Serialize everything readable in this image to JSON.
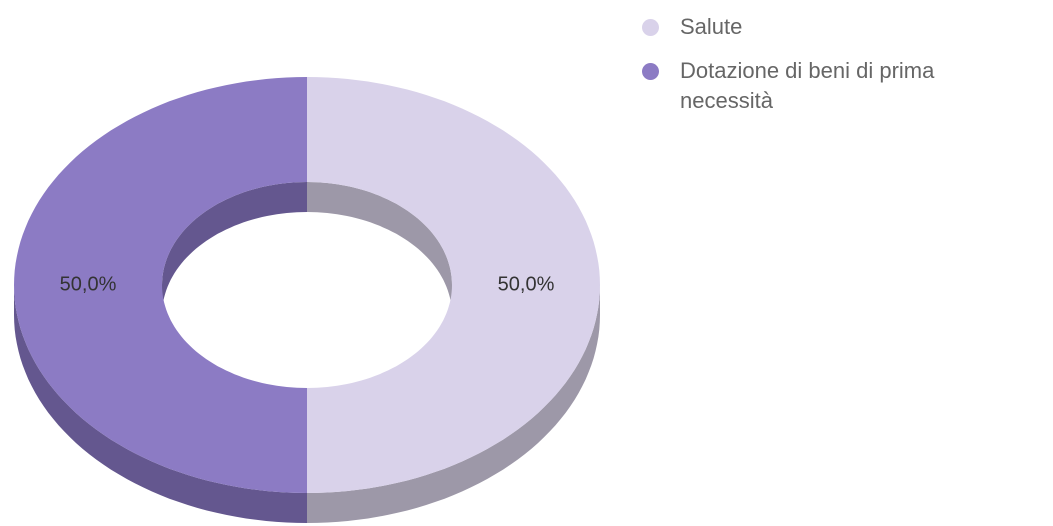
{
  "chart_data": {
    "type": "donut3d",
    "categories": [
      "Salute",
      "Dotazione di beni di prima necessità"
    ],
    "values": [
      50,
      50
    ],
    "value_labels": [
      "50,0%",
      "50,0%"
    ],
    "colors": [
      "#d9d2ea",
      "#8c7bc4"
    ],
    "side_colors": [
      "#9d98a8",
      "#64578f"
    ],
    "legend": "top-right"
  }
}
